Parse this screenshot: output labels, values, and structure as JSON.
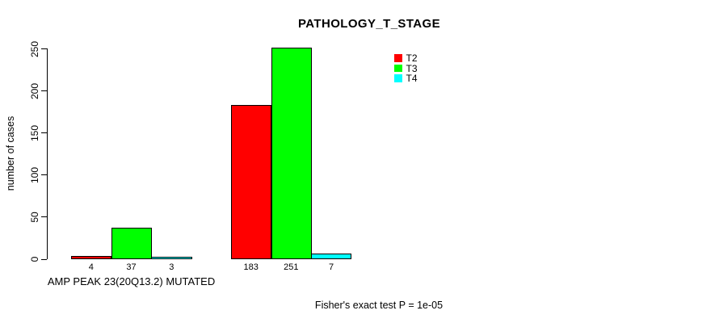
{
  "chart_data": {
    "type": "bar",
    "title": "PATHOLOGY_T_STAGE",
    "ylabel": "number of cases",
    "xlabel": "",
    "ylim": [
      0,
      250
    ],
    "yticks": [
      0,
      50,
      100,
      150,
      200,
      250
    ],
    "grid": false,
    "legend_position": "top-right-inside",
    "bar_border_color": "#000000",
    "series": [
      {
        "name": "T2",
        "color": "#ff0000"
      },
      {
        "name": "T3",
        "color": "#00ff00"
      },
      {
        "name": "T4",
        "color": "#00ffff"
      }
    ],
    "groups": [
      {
        "label": "AMP PEAK 23(20Q13.2) MUTATED",
        "values": [
          4,
          37,
          3
        ]
      },
      {
        "label": "",
        "values": [
          183,
          251,
          7
        ]
      }
    ],
    "bar_value_labels": [
      [
        "4",
        "37",
        "3"
      ],
      [
        "183",
        "251",
        "7"
      ]
    ]
  },
  "footnote": "Fisher's exact test P = 1e-05",
  "colors": {
    "background": "#ffffff",
    "axis": "#000000",
    "text": "#000000"
  }
}
